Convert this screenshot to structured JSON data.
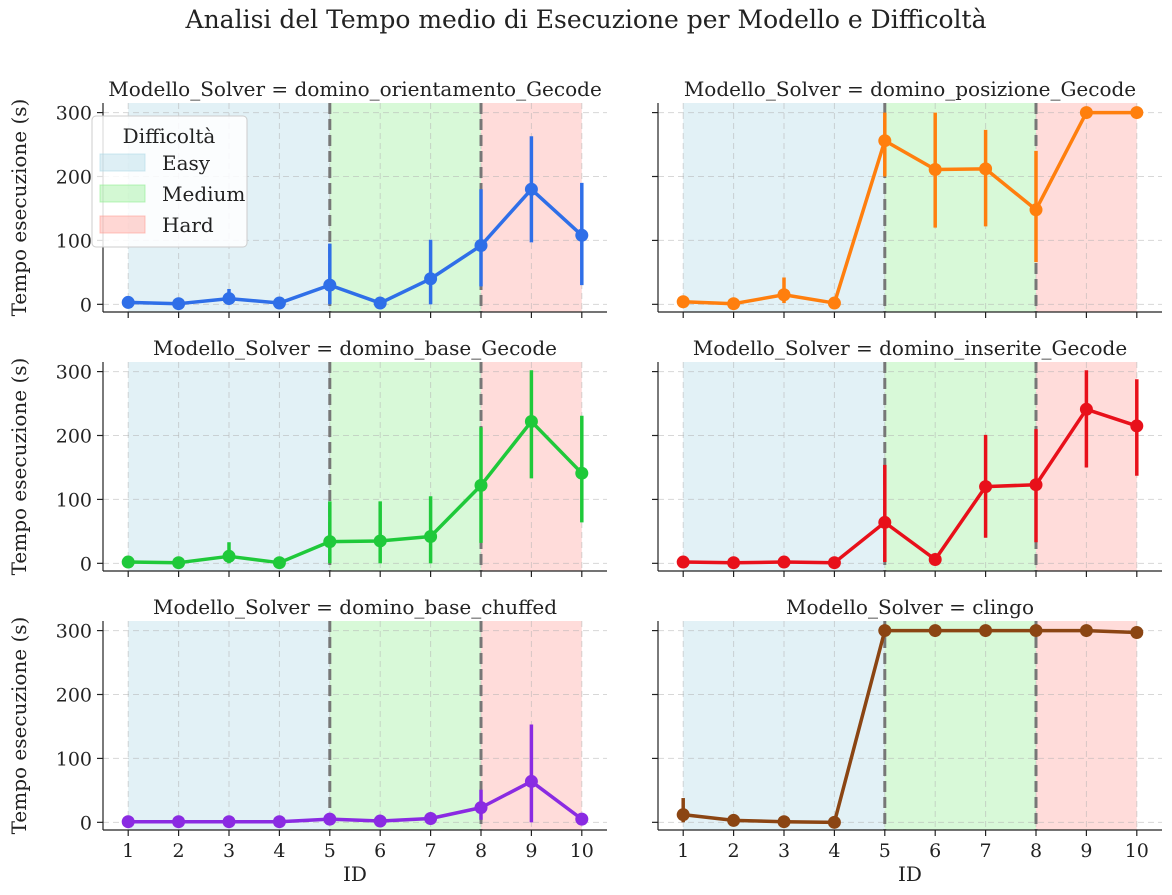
{
  "chart_data": {
    "type": "line",
    "title": "Analisi del Tempo medio di Esecuzione per Modello e Difficoltà",
    "xlabel": "ID",
    "ylabel": "Tempo esecuzione (s)",
    "x_ticks": [
      1,
      2,
      3,
      4,
      5,
      6,
      7,
      8,
      9,
      10
    ],
    "y_ticks": [
      0,
      100,
      200,
      300
    ],
    "xlim": [
      0.5,
      10.5
    ],
    "ylim": [
      -12,
      315
    ],
    "grid": true,
    "legend": {
      "title": "Difficoltà",
      "placement": "top-left (first panel)",
      "items": [
        {
          "label": "Easy",
          "color": "#add8e6",
          "x_range": [
            1,
            5
          ]
        },
        {
          "label": "Medium",
          "color": "#90ee90",
          "x_range": [
            5,
            8
          ]
        },
        {
          "label": "Hard",
          "color": "#ff9c94",
          "x_range": [
            8,
            10
          ]
        }
      ]
    },
    "boundary_lines": [
      5,
      8
    ],
    "panels": [
      {
        "title": "Modello_Solver = domino_orientamento_Gecode",
        "color": "#2f6fe8",
        "x": [
          1,
          2,
          3,
          4,
          5,
          6,
          7,
          8,
          9,
          10
        ],
        "values": [
          3,
          1,
          9,
          2,
          30,
          2,
          40,
          92,
          180,
          108
        ],
        "err_low": [
          null,
          null,
          0,
          null,
          0,
          null,
          0,
          28,
          97,
          30
        ],
        "err_high": [
          null,
          null,
          24,
          null,
          95,
          null,
          101,
          180,
          263,
          190
        ]
      },
      {
        "title": "Modello_Solver = domino_posizione_Gecode",
        "color": "#ff7f0e",
        "x": [
          1,
          2,
          3,
          4,
          5,
          6,
          7,
          8,
          9,
          10
        ],
        "values": [
          4,
          1,
          15,
          2,
          256,
          211,
          212,
          148,
          300,
          300
        ],
        "err_low": [
          null,
          null,
          2,
          null,
          200,
          120,
          122,
          66,
          null,
          null
        ],
        "err_high": [
          null,
          null,
          42,
          null,
          300,
          300,
          273,
          240,
          null,
          null
        ]
      },
      {
        "title": "Modello_Solver = domino_base_Gecode",
        "color": "#1fc93a",
        "x": [
          1,
          2,
          3,
          4,
          5,
          6,
          7,
          8,
          9,
          10
        ],
        "values": [
          2,
          1,
          11,
          1,
          34,
          35,
          42,
          122,
          222,
          141
        ],
        "err_low": [
          null,
          null,
          0,
          null,
          0,
          0,
          0,
          32,
          133,
          64
        ],
        "err_high": [
          null,
          null,
          33,
          null,
          97,
          97,
          105,
          213,
          302,
          231
        ]
      },
      {
        "title": "Modello_Solver = domino_inserite_Gecode",
        "color": "#e8101a",
        "x": [
          1,
          2,
          3,
          4,
          5,
          6,
          7,
          8,
          9,
          10
        ],
        "values": [
          2,
          1,
          2,
          1,
          64,
          6,
          120,
          123,
          241,
          215
        ],
        "err_low": [
          null,
          null,
          null,
          null,
          2,
          null,
          40,
          33,
          150,
          137
        ],
        "err_high": [
          null,
          null,
          null,
          null,
          154,
          null,
          201,
          210,
          302,
          288
        ]
      },
      {
        "title": "Modello_Solver = domino_base_chuffed",
        "color": "#8a2be2",
        "x": [
          1,
          2,
          3,
          4,
          5,
          6,
          7,
          8,
          9,
          10
        ],
        "values": [
          1,
          1,
          1,
          1,
          5,
          2,
          6,
          23,
          64,
          5
        ],
        "err_low": [
          null,
          null,
          null,
          null,
          null,
          null,
          1,
          4,
          0,
          null
        ],
        "err_high": [
          null,
          null,
          null,
          null,
          null,
          null,
          13,
          51,
          153,
          null
        ]
      },
      {
        "title": "Modello_Solver = clingo",
        "color": "#8b4513",
        "x": [
          1,
          2,
          3,
          4,
          5,
          6,
          7,
          8,
          9,
          10
        ],
        "values": [
          12,
          3,
          1,
          0,
          300,
          300,
          300,
          300,
          300,
          297
        ],
        "err_low": [
          0,
          null,
          null,
          null,
          null,
          null,
          null,
          null,
          null,
          null
        ],
        "err_high": [
          38,
          null,
          null,
          null,
          null,
          null,
          null,
          null,
          null,
          null
        ]
      }
    ]
  }
}
